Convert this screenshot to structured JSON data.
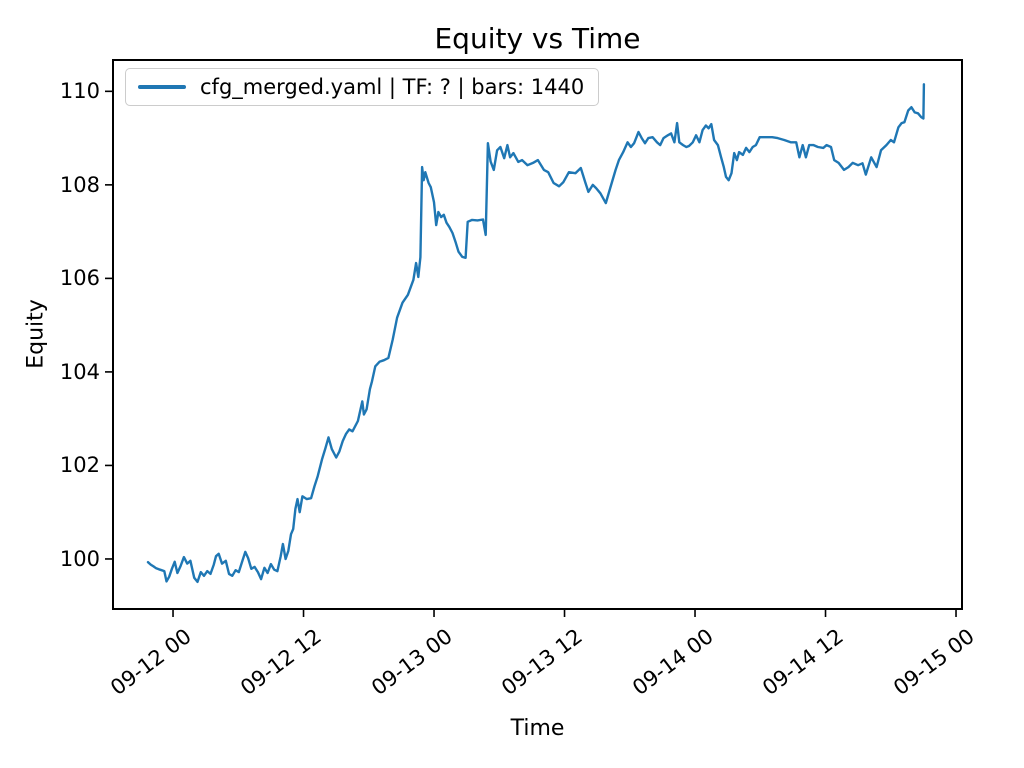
{
  "figure": {
    "background": "#ffffff",
    "text_color": "#000000",
    "spine_color": "#000000",
    "legend_border_color": "#cccccc"
  },
  "chart_data": {
    "type": "line",
    "title": "Equity vs Time",
    "grid": false,
    "legend_position": "upper left",
    "legend": [
      {
        "label": "cfg_merged.yaml | TF: ? | bars: 1440",
        "color": "#1f77b4"
      }
    ],
    "x_axis": {
      "label": "Time",
      "tick_hours": [
        0,
        12,
        24,
        36,
        48,
        60,
        72
      ],
      "tick_labels": [
        "09-12 00",
        "09-12 12",
        "09-13 00",
        "09-13 12",
        "09-14 00",
        "09-14 12",
        "09-15 00"
      ],
      "xlim_hours": [
        -5.52,
        72.55
      ],
      "note_hours_are_relative_to": "09-12 00"
    },
    "y_axis": {
      "label": "Equity",
      "ticks": [
        100,
        102,
        104,
        106,
        108,
        110
      ],
      "ylim": [
        98.93,
        110.67
      ]
    },
    "series": [
      {
        "name": "cfg_merged.yaml | TF: ? | bars: 1440",
        "color": "#1f77b4",
        "points": [
          [
            -2.3,
            99.93
          ],
          [
            -2.05,
            99.88
          ],
          [
            -1.8,
            99.84
          ],
          [
            -1.55,
            99.8
          ],
          [
            -1.3,
            99.78
          ],
          [
            -1.05,
            99.76
          ],
          [
            -0.8,
            99.74
          ],
          [
            -0.6,
            99.52
          ],
          [
            -0.35,
            99.62
          ],
          [
            -0.1,
            99.79
          ],
          [
            0.15,
            99.94
          ],
          [
            0.4,
            99.7
          ],
          [
            0.7,
            99.85
          ],
          [
            1.0,
            100.04
          ],
          [
            1.3,
            99.9
          ],
          [
            1.6,
            99.96
          ],
          [
            1.95,
            99.6
          ],
          [
            2.25,
            99.51
          ],
          [
            2.55,
            99.72
          ],
          [
            2.85,
            99.64
          ],
          [
            3.15,
            99.74
          ],
          [
            3.45,
            99.68
          ],
          [
            3.75,
            99.88
          ],
          [
            3.95,
            100.06
          ],
          [
            4.2,
            100.11
          ],
          [
            4.5,
            99.9
          ],
          [
            4.85,
            99.96
          ],
          [
            5.15,
            99.68
          ],
          [
            5.45,
            99.64
          ],
          [
            5.75,
            99.76
          ],
          [
            6.05,
            99.72
          ],
          [
            6.35,
            99.94
          ],
          [
            6.65,
            100.15
          ],
          [
            6.9,
            100.02
          ],
          [
            7.2,
            99.79
          ],
          [
            7.5,
            99.83
          ],
          [
            7.8,
            99.72
          ],
          [
            8.1,
            99.57
          ],
          [
            8.4,
            99.81
          ],
          [
            8.7,
            99.7
          ],
          [
            9.0,
            99.89
          ],
          [
            9.3,
            99.77
          ],
          [
            9.6,
            99.74
          ],
          [
            9.9,
            100.06
          ],
          [
            10.1,
            100.32
          ],
          [
            10.35,
            100.0
          ],
          [
            10.6,
            100.17
          ],
          [
            10.85,
            100.53
          ],
          [
            11.05,
            100.64
          ],
          [
            11.25,
            101.07
          ],
          [
            11.45,
            101.28
          ],
          [
            11.65,
            101.0
          ],
          [
            11.9,
            101.34
          ],
          [
            12.3,
            101.28
          ],
          [
            12.7,
            101.3
          ],
          [
            13.0,
            101.55
          ],
          [
            13.3,
            101.77
          ],
          [
            13.7,
            102.13
          ],
          [
            14.0,
            102.36
          ],
          [
            14.3,
            102.6
          ],
          [
            14.6,
            102.35
          ],
          [
            15.0,
            102.17
          ],
          [
            15.3,
            102.3
          ],
          [
            15.6,
            102.52
          ],
          [
            15.9,
            102.67
          ],
          [
            16.2,
            102.77
          ],
          [
            16.5,
            102.73
          ],
          [
            17.0,
            102.95
          ],
          [
            17.4,
            103.37
          ],
          [
            17.55,
            103.09
          ],
          [
            17.8,
            103.2
          ],
          [
            18.1,
            103.63
          ],
          [
            18.3,
            103.8
          ],
          [
            18.6,
            104.12
          ],
          [
            19.0,
            104.22
          ],
          [
            19.4,
            104.25
          ],
          [
            19.8,
            104.3
          ],
          [
            20.2,
            104.69
          ],
          [
            20.6,
            105.16
          ],
          [
            21.1,
            105.48
          ],
          [
            21.6,
            105.65
          ],
          [
            22.1,
            105.97
          ],
          [
            22.35,
            106.33
          ],
          [
            22.55,
            106.03
          ],
          [
            22.75,
            106.45
          ],
          [
            22.9,
            108.38
          ],
          [
            23.05,
            108.1
          ],
          [
            23.2,
            108.27
          ],
          [
            23.5,
            108.04
          ],
          [
            23.7,
            107.95
          ],
          [
            24.0,
            107.63
          ],
          [
            24.2,
            107.14
          ],
          [
            24.4,
            107.42
          ],
          [
            24.65,
            107.31
          ],
          [
            24.9,
            107.36
          ],
          [
            25.15,
            107.19
          ],
          [
            25.4,
            107.1
          ],
          [
            25.7,
            106.97
          ],
          [
            26.0,
            106.76
          ],
          [
            26.25,
            106.57
          ],
          [
            26.6,
            106.46
          ],
          [
            26.9,
            106.44
          ],
          [
            27.1,
            107.21
          ],
          [
            27.5,
            107.25
          ],
          [
            28.0,
            107.24
          ],
          [
            28.5,
            107.26
          ],
          [
            28.75,
            106.93
          ],
          [
            28.95,
            108.89
          ],
          [
            29.2,
            108.5
          ],
          [
            29.5,
            108.32
          ],
          [
            29.8,
            108.74
          ],
          [
            30.1,
            108.81
          ],
          [
            30.45,
            108.57
          ],
          [
            30.75,
            108.85
          ],
          [
            31.0,
            108.59
          ],
          [
            31.3,
            108.68
          ],
          [
            31.75,
            108.49
          ],
          [
            32.1,
            108.53
          ],
          [
            32.6,
            108.42
          ],
          [
            33.1,
            108.47
          ],
          [
            33.55,
            108.53
          ],
          [
            34.1,
            108.32
          ],
          [
            34.5,
            108.27
          ],
          [
            35.0,
            108.04
          ],
          [
            35.5,
            107.97
          ],
          [
            35.9,
            108.06
          ],
          [
            36.4,
            108.27
          ],
          [
            37.0,
            108.25
          ],
          [
            37.5,
            108.36
          ],
          [
            37.9,
            108.06
          ],
          [
            38.2,
            107.85
          ],
          [
            38.6,
            108.0
          ],
          [
            38.9,
            107.93
          ],
          [
            39.3,
            107.82
          ],
          [
            39.8,
            107.61
          ],
          [
            40.2,
            107.93
          ],
          [
            40.7,
            108.32
          ],
          [
            41.0,
            108.53
          ],
          [
            41.4,
            108.7
          ],
          [
            41.8,
            108.91
          ],
          [
            42.1,
            108.81
          ],
          [
            42.4,
            108.89
          ],
          [
            42.8,
            109.13
          ],
          [
            43.1,
            109.0
          ],
          [
            43.4,
            108.89
          ],
          [
            43.7,
            109.0
          ],
          [
            44.1,
            109.02
          ],
          [
            44.5,
            108.91
          ],
          [
            44.8,
            108.85
          ],
          [
            45.1,
            109.0
          ],
          [
            45.5,
            109.06
          ],
          [
            45.8,
            109.1
          ],
          [
            46.1,
            108.91
          ],
          [
            46.35,
            109.32
          ],
          [
            46.55,
            108.91
          ],
          [
            46.9,
            108.85
          ],
          [
            47.2,
            108.81
          ],
          [
            47.45,
            108.83
          ],
          [
            47.8,
            108.91
          ],
          [
            48.1,
            109.06
          ],
          [
            48.4,
            108.91
          ],
          [
            48.7,
            109.17
          ],
          [
            49.0,
            109.27
          ],
          [
            49.25,
            109.21
          ],
          [
            49.5,
            109.3
          ],
          [
            49.75,
            108.96
          ],
          [
            50.1,
            108.85
          ],
          [
            50.4,
            108.59
          ],
          [
            50.65,
            108.38
          ],
          [
            50.85,
            108.17
          ],
          [
            51.1,
            108.1
          ],
          [
            51.35,
            108.25
          ],
          [
            51.6,
            108.68
          ],
          [
            51.85,
            108.53
          ],
          [
            52.05,
            108.7
          ],
          [
            52.4,
            108.64
          ],
          [
            52.7,
            108.79
          ],
          [
            53.0,
            108.7
          ],
          [
            53.3,
            108.81
          ],
          [
            53.6,
            108.85
          ],
          [
            53.95,
            109.02
          ],
          [
            54.5,
            109.02
          ],
          [
            55.1,
            109.02
          ],
          [
            55.6,
            109.0
          ],
          [
            56.2,
            108.96
          ],
          [
            56.8,
            108.91
          ],
          [
            57.3,
            108.91
          ],
          [
            57.6,
            108.59
          ],
          [
            57.9,
            108.85
          ],
          [
            58.2,
            108.59
          ],
          [
            58.5,
            108.85
          ],
          [
            58.9,
            108.85
          ],
          [
            59.3,
            108.81
          ],
          [
            59.8,
            108.79
          ],
          [
            60.1,
            108.85
          ],
          [
            60.5,
            108.81
          ],
          [
            60.8,
            108.53
          ],
          [
            61.2,
            108.47
          ],
          [
            61.7,
            108.32
          ],
          [
            62.1,
            108.38
          ],
          [
            62.5,
            108.47
          ],
          [
            63.0,
            108.42
          ],
          [
            63.4,
            108.46
          ],
          [
            63.7,
            108.22
          ],
          [
            64.2,
            108.59
          ],
          [
            64.7,
            108.38
          ],
          [
            65.1,
            108.74
          ],
          [
            65.6,
            108.85
          ],
          [
            66.0,
            108.96
          ],
          [
            66.3,
            108.91
          ],
          [
            66.7,
            109.23
          ],
          [
            67.0,
            109.32
          ],
          [
            67.25,
            109.34
          ],
          [
            67.6,
            109.59
          ],
          [
            67.9,
            109.66
          ],
          [
            68.2,
            109.55
          ],
          [
            68.5,
            109.53
          ],
          [
            68.8,
            109.45
          ],
          [
            69.0,
            109.42
          ],
          [
            69.05,
            110.15
          ]
        ]
      }
    ]
  }
}
